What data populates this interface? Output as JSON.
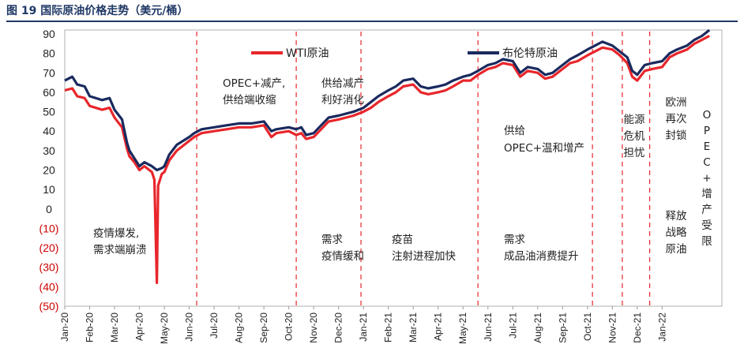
{
  "figure": {
    "title": "图 19  国际原油价格走势（美元/桶）"
  },
  "colors": {
    "wti": "#e8262b",
    "brent": "#1a2a5e",
    "divider": "#e8262b",
    "title": "#1f3864",
    "negative_tick": "#cc0000"
  },
  "chart_data": {
    "type": "line",
    "title": "国际原油价格走势（美元/桶）",
    "xlabel": "",
    "ylabel": "",
    "ylim": [
      -50,
      90
    ],
    "yticks": [
      "90",
      "80",
      "70",
      "60",
      "50",
      "40",
      "30",
      "20",
      "10",
      "0",
      "(10)",
      "(20)",
      "(30)",
      "(40)",
      "(50)"
    ],
    "ytick_values": [
      90,
      80,
      70,
      60,
      50,
      40,
      30,
      20,
      10,
      0,
      -10,
      -20,
      -30,
      -40,
      -50
    ],
    "x_range_months": [
      0,
      26.4
    ],
    "categories": [
      "Jan-20",
      "Feb-20",
      "Mar-20",
      "Apr-20",
      "May-20",
      "Jun-20",
      "Jul-20",
      "Aug-20",
      "Sep-20",
      "Oct-20",
      "Nov-20",
      "Dec-20",
      "Jan-21",
      "Feb-21",
      "Mar-21",
      "Apr-21",
      "May-21",
      "Jun-21",
      "Jul-21",
      "Aug-21",
      "Sep-21",
      "Oct-21",
      "Nov-21",
      "Dec-21",
      "Jan-22"
    ],
    "tick_months": [
      0,
      1,
      2,
      3,
      4,
      5,
      6,
      7,
      8,
      9,
      10,
      11,
      12,
      13,
      14,
      15,
      16,
      17,
      18,
      19,
      20,
      21,
      22,
      23,
      24
    ],
    "legend": [
      "WTI原油",
      "布伦特原油"
    ],
    "series": [
      {
        "name": "WTI原油",
        "points": [
          [
            0,
            61
          ],
          [
            0.3,
            62
          ],
          [
            0.5,
            58
          ],
          [
            0.8,
            57
          ],
          [
            1,
            53
          ],
          [
            1.5,
            51
          ],
          [
            1.8,
            52
          ],
          [
            2,
            47
          ],
          [
            2.3,
            42
          ],
          [
            2.5,
            31
          ],
          [
            2.6,
            27
          ],
          [
            2.8,
            24
          ],
          [
            3,
            20
          ],
          [
            3.2,
            22
          ],
          [
            3.5,
            19
          ],
          [
            3.6,
            15
          ],
          [
            3.7,
            -38
          ],
          [
            3.75,
            12
          ],
          [
            3.9,
            18
          ],
          [
            4,
            19
          ],
          [
            4.2,
            25
          ],
          [
            4.5,
            30
          ],
          [
            5,
            35
          ],
          [
            5.2,
            37
          ],
          [
            5.5,
            39
          ],
          [
            6,
            40
          ],
          [
            6.5,
            41
          ],
          [
            7,
            42
          ],
          [
            7.5,
            42
          ],
          [
            8,
            43
          ],
          [
            8.3,
            37
          ],
          [
            8.5,
            39
          ],
          [
            9,
            40
          ],
          [
            9.3,
            38
          ],
          [
            9.5,
            39
          ],
          [
            9.7,
            36
          ],
          [
            10,
            37
          ],
          [
            10.3,
            41
          ],
          [
            10.6,
            45
          ],
          [
            11,
            46
          ],
          [
            11.3,
            47
          ],
          [
            11.6,
            48
          ],
          [
            12,
            50
          ],
          [
            12.3,
            52
          ],
          [
            12.6,
            55
          ],
          [
            13,
            58
          ],
          [
            13.3,
            60
          ],
          [
            13.6,
            63
          ],
          [
            14,
            64
          ],
          [
            14.3,
            60
          ],
          [
            14.6,
            59
          ],
          [
            15,
            60
          ],
          [
            15.3,
            61
          ],
          [
            15.6,
            63
          ],
          [
            16,
            66
          ],
          [
            16.3,
            66
          ],
          [
            16.6,
            69
          ],
          [
            17,
            72
          ],
          [
            17.3,
            73
          ],
          [
            17.6,
            75
          ],
          [
            18,
            74
          ],
          [
            18.3,
            68
          ],
          [
            18.6,
            71
          ],
          [
            19,
            70
          ],
          [
            19.3,
            67
          ],
          [
            19.6,
            68
          ],
          [
            20,
            72
          ],
          [
            20.3,
            75
          ],
          [
            20.6,
            76
          ],
          [
            21,
            79
          ],
          [
            21.3,
            81
          ],
          [
            21.6,
            83
          ],
          [
            22,
            82
          ],
          [
            22.3,
            79
          ],
          [
            22.6,
            75
          ],
          [
            22.8,
            68
          ],
          [
            23,
            66
          ],
          [
            23.3,
            71
          ],
          [
            23.6,
            72
          ],
          [
            24,
            73
          ],
          [
            24.3,
            78
          ],
          [
            24.6,
            80
          ],
          [
            25,
            82
          ],
          [
            25.3,
            85
          ],
          [
            25.6,
            87
          ],
          [
            25.9,
            89
          ]
        ]
      },
      {
        "name": "布伦特原油",
        "points": [
          [
            0,
            66
          ],
          [
            0.3,
            68
          ],
          [
            0.5,
            64
          ],
          [
            0.8,
            63
          ],
          [
            1,
            58
          ],
          [
            1.5,
            56
          ],
          [
            1.8,
            57
          ],
          [
            2,
            51
          ],
          [
            2.3,
            46
          ],
          [
            2.5,
            34
          ],
          [
            2.6,
            30
          ],
          [
            2.8,
            26
          ],
          [
            3,
            22
          ],
          [
            3.2,
            24
          ],
          [
            3.5,
            22
          ],
          [
            3.7,
            20
          ],
          [
            3.9,
            21
          ],
          [
            4,
            22
          ],
          [
            4.2,
            28
          ],
          [
            4.5,
            33
          ],
          [
            5,
            37
          ],
          [
            5.2,
            39
          ],
          [
            5.5,
            41
          ],
          [
            6,
            42
          ],
          [
            6.5,
            43
          ],
          [
            7,
            44
          ],
          [
            7.5,
            44
          ],
          [
            8,
            45
          ],
          [
            8.3,
            40
          ],
          [
            8.5,
            41
          ],
          [
            9,
            42
          ],
          [
            9.3,
            41
          ],
          [
            9.5,
            42
          ],
          [
            9.7,
            38
          ],
          [
            10,
            39
          ],
          [
            10.3,
            43
          ],
          [
            10.6,
            47
          ],
          [
            11,
            48
          ],
          [
            11.3,
            49
          ],
          [
            11.6,
            50
          ],
          [
            12,
            52
          ],
          [
            12.3,
            55
          ],
          [
            12.6,
            58
          ],
          [
            13,
            61
          ],
          [
            13.3,
            63
          ],
          [
            13.6,
            66
          ],
          [
            14,
            67
          ],
          [
            14.3,
            63
          ],
          [
            14.6,
            62
          ],
          [
            15,
            63
          ],
          [
            15.3,
            64
          ],
          [
            15.6,
            66
          ],
          [
            16,
            68
          ],
          [
            16.3,
            69
          ],
          [
            16.6,
            71
          ],
          [
            17,
            74
          ],
          [
            17.3,
            75
          ],
          [
            17.6,
            77
          ],
          [
            18,
            76
          ],
          [
            18.3,
            70
          ],
          [
            18.6,
            73
          ],
          [
            19,
            72
          ],
          [
            19.3,
            69
          ],
          [
            19.6,
            70
          ],
          [
            20,
            74
          ],
          [
            20.3,
            77
          ],
          [
            20.6,
            79
          ],
          [
            21,
            82
          ],
          [
            21.3,
            84
          ],
          [
            21.6,
            86
          ],
          [
            22,
            84
          ],
          [
            22.3,
            81
          ],
          [
            22.6,
            78
          ],
          [
            22.8,
            71
          ],
          [
            23,
            69
          ],
          [
            23.3,
            74
          ],
          [
            23.6,
            75
          ],
          [
            24,
            76
          ],
          [
            24.3,
            80
          ],
          [
            24.6,
            82
          ],
          [
            25,
            84
          ],
          [
            25.3,
            87
          ],
          [
            25.6,
            89
          ],
          [
            25.9,
            92
          ]
        ]
      }
    ],
    "event_dividers_months": [
      5.3,
      9.3,
      11.9,
      16.6,
      21.2,
      22.4,
      23.5
    ],
    "annotations": [
      {
        "lines": [
          "疫情爆发,",
          "需求端崩溃"
        ]
      },
      {
        "lines": [
          "OPEC+减产,",
          "供给端收缩"
        ]
      },
      {
        "lines": [
          "供给减产",
          "利好消化"
        ]
      },
      {
        "lines": [
          "需求",
          "疫情缓和"
        ]
      },
      {
        "lines": [
          "疫苗",
          "注射进程加快"
        ]
      },
      {
        "lines": [
          "供给",
          "OPEC+温和增产"
        ]
      },
      {
        "lines": [
          "需求",
          "成品油消费提升"
        ]
      },
      {
        "lines": [
          "能源",
          "危机",
          "担忧"
        ]
      },
      {
        "lines": [
          "欧洲",
          "再次",
          "封锁"
        ]
      },
      {
        "lines": [
          "释放",
          "战略",
          "原油"
        ]
      },
      {
        "lines": [
          "O",
          "P",
          "E",
          "C",
          "+",
          "增",
          "产",
          "受",
          "限"
        ]
      }
    ]
  }
}
